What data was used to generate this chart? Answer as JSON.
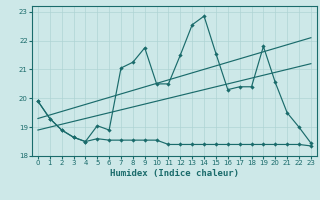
{
  "xlabel": "Humidex (Indice chaleur)",
  "bg_color": "#cde8e8",
  "line_color": "#1a6b6b",
  "grid_color": "#afd4d4",
  "xlim": [
    -0.5,
    23.5
  ],
  "ylim": [
    18.0,
    23.2
  ],
  "yticks": [
    18,
    19,
    20,
    21,
    22,
    23
  ],
  "xticks": [
    0,
    1,
    2,
    3,
    4,
    5,
    6,
    7,
    8,
    9,
    10,
    11,
    12,
    13,
    14,
    15,
    16,
    17,
    18,
    19,
    20,
    21,
    22,
    23
  ],
  "line1_x": [
    0,
    1,
    2,
    3,
    4,
    5,
    6,
    7,
    8,
    9,
    10,
    11,
    12,
    13,
    14,
    15,
    16,
    17,
    18,
    19,
    20,
    21,
    22,
    23
  ],
  "line1_y": [
    19.9,
    19.3,
    18.9,
    18.65,
    18.5,
    19.05,
    18.9,
    21.05,
    21.25,
    21.75,
    20.5,
    20.5,
    21.5,
    22.55,
    22.85,
    21.55,
    20.3,
    20.4,
    20.4,
    21.8,
    20.55,
    19.5,
    19.0,
    18.45
  ],
  "line2_x": [
    0,
    1,
    2,
    3,
    4,
    5,
    6,
    7,
    8,
    9,
    10,
    11,
    12,
    13,
    14,
    15,
    16,
    17,
    18,
    19,
    20,
    21,
    22,
    23
  ],
  "line2_y": [
    19.9,
    19.3,
    18.9,
    18.65,
    18.5,
    18.6,
    18.55,
    18.55,
    18.55,
    18.55,
    18.55,
    18.4,
    18.4,
    18.4,
    18.4,
    18.4,
    18.4,
    18.4,
    18.4,
    18.4,
    18.4,
    18.4,
    18.4,
    18.35
  ],
  "trend1_x": [
    0,
    23
  ],
  "trend1_y": [
    19.3,
    22.1
  ],
  "trend2_x": [
    0,
    23
  ],
  "trend2_y": [
    18.9,
    21.2
  ]
}
